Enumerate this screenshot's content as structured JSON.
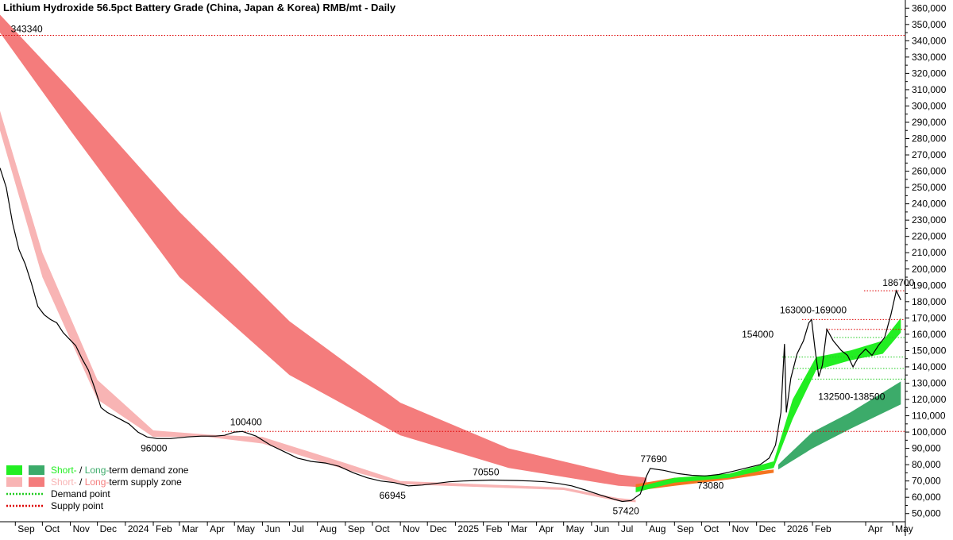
{
  "chart_data": {
    "type": "line",
    "title": "Lithium Hydroxide 56.5pct Battery Grade (China, Japan & Korea) RMB/mt - Daily",
    "ylim": [
      45000,
      365000
    ],
    "xlim": [
      "2023-08-15",
      "2026-05-15"
    ],
    "y_scale": "linear",
    "y_axis_side": "right",
    "grid": false,
    "y_ticks": [
      "50,000",
      "60,000",
      "70,000",
      "80,000",
      "90,000",
      "100,000",
      "110,000",
      "120,000",
      "130,000",
      "140,000",
      "150,000",
      "160,000",
      "170,000",
      "180,000",
      "190,000",
      "200,000",
      "210,000",
      "220,000",
      "230,000",
      "240,000",
      "250,000",
      "260,000",
      "270,000",
      "280,000",
      "290,000",
      "300,000",
      "310,000",
      "320,000",
      "330,000",
      "340,000",
      "350,000",
      "360,000"
    ],
    "x_ticks": [
      {
        "label": "Sep",
        "date": "2023-09-01"
      },
      {
        "label": "Oct",
        "date": "2023-10-01"
      },
      {
        "label": "Nov",
        "date": "2023-11-01"
      },
      {
        "label": "Dec",
        "date": "2023-12-01"
      },
      {
        "label": "2024",
        "date": "2024-01-01"
      },
      {
        "label": "Feb",
        "date": "2024-02-01"
      },
      {
        "label": "Mar",
        "date": "2024-03-01"
      },
      {
        "label": "Apr",
        "date": "2024-04-01"
      },
      {
        "label": "May",
        "date": "2024-05-01"
      },
      {
        "label": "Jun",
        "date": "2024-06-01"
      },
      {
        "label": "Jul",
        "date": "2024-07-01"
      },
      {
        "label": "Aug",
        "date": "2024-08-01"
      },
      {
        "label": "Sep",
        "date": "2024-09-01"
      },
      {
        "label": "Oct",
        "date": "2024-10-01"
      },
      {
        "label": "Nov",
        "date": "2024-11-01"
      },
      {
        "label": "Dec",
        "date": "2024-12-01"
      },
      {
        "label": "2025",
        "date": "2025-01-01"
      },
      {
        "label": "Feb",
        "date": "2025-02-01"
      },
      {
        "label": "Mar",
        "date": "2025-03-01"
      },
      {
        "label": "Apr",
        "date": "2025-04-01"
      },
      {
        "label": "May",
        "date": "2025-05-01"
      },
      {
        "label": "Jun",
        "date": "2025-06-01"
      },
      {
        "label": "Jul",
        "date": "2025-07-01"
      },
      {
        "label": "Aug",
        "date": "2025-08-01"
      },
      {
        "label": "Sep",
        "date": "2025-09-01"
      },
      {
        "label": "Oct",
        "date": "2025-10-01"
      },
      {
        "label": "Nov",
        "date": "2025-11-01"
      },
      {
        "label": "Dec",
        "date": "2025-12-01"
      },
      {
        "label": "2026",
        "date": "2026-01-01"
      },
      {
        "label": "Feb",
        "date": "2026-02-01"
      },
      {
        "label": "Apr",
        "date": "2026-04-01"
      },
      {
        "label": "May",
        "date": "2026-05-01"
      }
    ],
    "price_series": {
      "color": "#000000",
      "points": [
        [
          "2023-08-15",
          262000
        ],
        [
          "2023-08-22",
          250000
        ],
        [
          "2023-08-29",
          228000
        ],
        [
          "2023-09-05",
          212000
        ],
        [
          "2023-09-12",
          203000
        ],
        [
          "2023-09-19",
          191000
        ],
        [
          "2023-09-26",
          177000
        ],
        [
          "2023-10-03",
          172000
        ],
        [
          "2023-10-10",
          169000
        ],
        [
          "2023-10-17",
          167000
        ],
        [
          "2023-10-24",
          161000
        ],
        [
          "2023-10-31",
          157000
        ],
        [
          "2023-11-07",
          153000
        ],
        [
          "2023-11-14",
          145000
        ],
        [
          "2023-11-21",
          138000
        ],
        [
          "2023-11-28",
          127000
        ],
        [
          "2023-12-05",
          115000
        ],
        [
          "2023-12-12",
          112000
        ],
        [
          "2023-12-19",
          110000
        ],
        [
          "2023-12-26",
          108000
        ],
        [
          "2024-01-05",
          105000
        ],
        [
          "2024-01-15",
          100000
        ],
        [
          "2024-01-25",
          97000
        ],
        [
          "2024-02-05",
          96000
        ],
        [
          "2024-02-20",
          96000
        ],
        [
          "2024-03-10",
          97000
        ],
        [
          "2024-03-25",
          97500
        ],
        [
          "2024-04-10",
          97500
        ],
        [
          "2024-04-20",
          98000
        ],
        [
          "2024-05-01",
          100000
        ],
        [
          "2024-05-10",
          100400
        ],
        [
          "2024-05-25",
          97500
        ],
        [
          "2024-06-10",
          92000
        ],
        [
          "2024-06-25",
          88000
        ],
        [
          "2024-07-10",
          84000
        ],
        [
          "2024-07-25",
          82000
        ],
        [
          "2024-08-10",
          81000
        ],
        [
          "2024-08-25",
          79000
        ],
        [
          "2024-09-10",
          75000
        ],
        [
          "2024-09-25",
          72000
        ],
        [
          "2024-10-10",
          70000
        ],
        [
          "2024-10-25",
          69000
        ],
        [
          "2024-11-10",
          66945
        ],
        [
          "2024-11-25",
          67500
        ],
        [
          "2024-12-10",
          68500
        ],
        [
          "2024-12-25",
          69500
        ],
        [
          "2025-01-10",
          70000
        ],
        [
          "2025-01-25",
          70300
        ],
        [
          "2025-02-10",
          70550
        ],
        [
          "2025-02-25",
          70400
        ],
        [
          "2025-03-10",
          70300
        ],
        [
          "2025-03-25",
          70000
        ],
        [
          "2025-04-10",
          69500
        ],
        [
          "2025-04-25",
          68500
        ],
        [
          "2025-05-10",
          67000
        ],
        [
          "2025-05-25",
          64500
        ],
        [
          "2025-06-10",
          61500
        ],
        [
          "2025-06-25",
          59000
        ],
        [
          "2025-07-05",
          57420
        ],
        [
          "2025-07-15",
          58000
        ],
        [
          "2025-07-25",
          62000
        ],
        [
          "2025-08-01",
          73000
        ],
        [
          "2025-08-05",
          77690
        ],
        [
          "2025-08-20",
          76500
        ],
        [
          "2025-09-05",
          74500
        ],
        [
          "2025-09-20",
          73500
        ],
        [
          "2025-10-05",
          73080
        ],
        [
          "2025-10-20",
          74000
        ],
        [
          "2025-11-05",
          76000
        ],
        [
          "2025-11-20",
          78000
        ],
        [
          "2025-12-05",
          80000
        ],
        [
          "2025-12-15",
          84000
        ],
        [
          "2025-12-22",
          92000
        ],
        [
          "2025-12-28",
          112000
        ],
        [
          "2026-01-01",
          154000
        ],
        [
          "2026-01-03",
          112000
        ],
        [
          "2026-01-08",
          133000
        ],
        [
          "2026-01-15",
          148000
        ],
        [
          "2026-01-22",
          156000
        ],
        [
          "2026-01-28",
          167000
        ],
        [
          "2026-01-31",
          169000
        ],
        [
          "2026-02-04",
          150000
        ],
        [
          "2026-02-08",
          134000
        ],
        [
          "2026-02-12",
          141000
        ],
        [
          "2026-02-17",
          163000
        ],
        [
          "2026-02-24",
          156000
        ],
        [
          "2026-03-05",
          150000
        ],
        [
          "2026-03-12",
          147000
        ],
        [
          "2026-03-18",
          140000
        ],
        [
          "2026-03-25",
          147000
        ],
        [
          "2026-04-01",
          151000
        ],
        [
          "2026-04-08",
          147000
        ],
        [
          "2026-04-15",
          153000
        ],
        [
          "2026-04-22",
          158000
        ],
        [
          "2026-04-29",
          172000
        ],
        [
          "2026-05-05",
          186700
        ],
        [
          "2026-05-10",
          181000
        ]
      ]
    },
    "zones": [
      {
        "name": "long-term supply zone",
        "color": "#f47c7c",
        "x": [
          "2023-08-15",
          "2023-11-01",
          "2024-03-01",
          "2024-07-01",
          "2024-11-01",
          "2025-03-01",
          "2025-07-01",
          "2025-08-01"
        ],
        "upper": [
          356000,
          310000,
          235000,
          168000,
          118000,
          90000,
          74000,
          72000
        ],
        "lower": [
          345000,
          285000,
          195000,
          135000,
          98000,
          78000,
          67000,
          66000
        ]
      },
      {
        "name": "short-term supply zone",
        "color": "#f8b4b4",
        "x": [
          "2023-08-15",
          "2023-10-01",
          "2023-12-01",
          "2024-02-01",
          "2024-04-01",
          "2024-06-01",
          "2024-09-01",
          "2024-11-01",
          "2025-05-01",
          "2025-07-01",
          "2025-07-20"
        ],
        "upper": [
          297000,
          210000,
          132000,
          101000,
          98500,
          97000,
          81000,
          70000,
          66000,
          59500,
          58500
        ],
        "lower": [
          285000,
          195000,
          120000,
          97000,
          97000,
          93000,
          77000,
          68000,
          64500,
          57500,
          57000
        ]
      },
      {
        "name": "long-term supply zone (recent)",
        "color": "#f47420",
        "x": [
          "2025-07-20",
          "2025-09-01",
          "2025-11-01",
          "2025-12-20"
        ],
        "upper": [
          68000,
          72000,
          74000,
          77000
        ],
        "lower": [
          64000,
          67000,
          71000,
          75000
        ]
      },
      {
        "name": "short-term demand zone",
        "color": "#22ee22",
        "x": [
          "2025-07-20",
          "2025-09-01",
          "2025-11-01",
          "2025-12-20",
          "2026-01-10",
          "2026-02-05",
          "2026-03-15",
          "2026-04-20",
          "2026-05-10"
        ],
        "upper": [
          66000,
          72000,
          74500,
          82000,
          120000,
          146000,
          150000,
          156000,
          170000
        ],
        "lower": [
          63000,
          69000,
          72000,
          78000,
          108000,
          138000,
          144000,
          148000,
          161000
        ]
      },
      {
        "name": "long-term demand zone",
        "color": "#3cab6a",
        "x": [
          "2025-12-25",
          "2026-02-01",
          "2026-03-15",
          "2026-05-10"
        ],
        "upper": [
          80000,
          100000,
          112000,
          131000
        ],
        "lower": [
          77000,
          90000,
          102000,
          117000
        ]
      }
    ],
    "supply_points": [
      343340,
      100400,
      186700,
      169000,
      163000
    ],
    "demand_points": [
      158000,
      146000,
      139000,
      132500
    ],
    "annotations": [
      {
        "text": "343340",
        "date": "2023-08-20",
        "value": 343340
      },
      {
        "text": "96000",
        "date": "2024-01-25",
        "value": 96000
      },
      {
        "text": "100400",
        "date": "2024-05-05",
        "value": 100400
      },
      {
        "text": "66945",
        "date": "2024-10-28",
        "value": 66945
      },
      {
        "text": "70550",
        "date": "2025-02-05",
        "value": 70550
      },
      {
        "text": "57420",
        "date": "2025-07-05",
        "value": 57420
      },
      {
        "text": "77690",
        "date": "2025-08-03",
        "value": 77690
      },
      {
        "text": "73080",
        "date": "2025-10-05",
        "value": 73080
      },
      {
        "text": "154000",
        "date": "2025-12-27",
        "value": 154000
      },
      {
        "text": "163000-169000",
        "date": "2026-01-31",
        "value": 169000
      },
      {
        "text": "132500-138500",
        "date": "2026-02-25",
        "value": 132500
      },
      {
        "text": "186700",
        "date": "2026-05-02",
        "value": 186700
      }
    ],
    "legend": {
      "placement": "bottom-left",
      "entries": [
        {
          "prefix": "Short-",
          "middle": " / ",
          "long": "Long-",
          "suffix": "term demand zone",
          "colors": [
            "#22ee22",
            "#3cab6a"
          ],
          "kind": "zone"
        },
        {
          "prefix": "Short-",
          "middle": " / ",
          "long": "Long-",
          "suffix": "term supply zone",
          "colors": [
            "#f8b4b4",
            "#f47c7c"
          ],
          "kind": "zone"
        },
        {
          "label": "Demand point",
          "color": "#22cc22",
          "kind": "dots"
        },
        {
          "label": "Supply point",
          "color": "#dd0000",
          "kind": "dots"
        }
      ]
    }
  }
}
